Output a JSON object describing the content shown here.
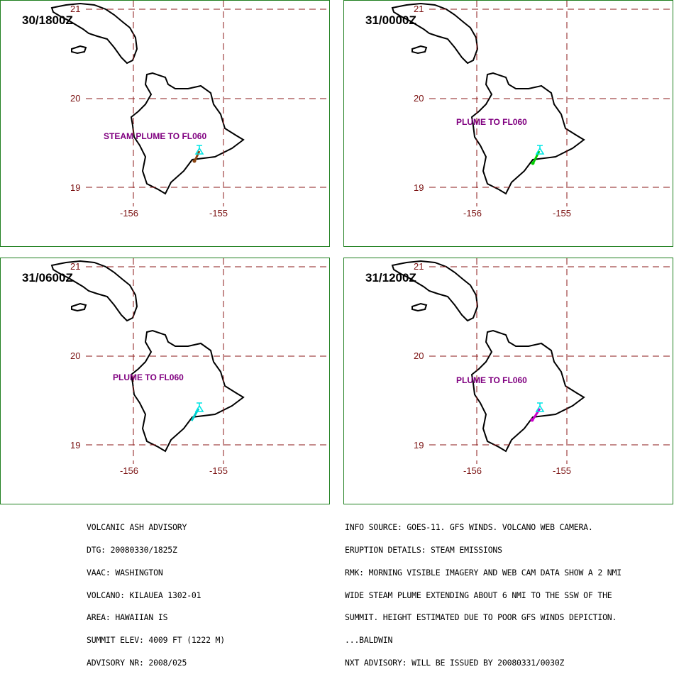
{
  "panels": [
    {
      "time": "30/1800Z",
      "plume_text": "STEAM PLUME TO FL060",
      "plume_color": "#8b4513"
    },
    {
      "time": "31/0000Z",
      "plume_text": "PLUME TO FL060",
      "plume_color": "#00cc00"
    },
    {
      "time": "31/0600Z",
      "plume_text": "PLUME TO FL060",
      "plume_color": "#00cccc"
    },
    {
      "time": "31/1200Z",
      "plume_text": "PLUME TO FL060",
      "plume_color": "#cc00cc"
    }
  ],
  "map_labels": {
    "lat_21": "21",
    "lat_20": "20",
    "lat_19": "19",
    "lon_156": "-156",
    "lon_155": "-155"
  },
  "advisory_left": [
    "VOLCANIC ASH ADVISORY",
    "DTG: 20080330/1825Z",
    "VAAC: WASHINGTON",
    "VOLCANO: KILAUEA 1302-01",
    "AREA: HAWAIIAN IS",
    "SUMMIT ELEV: 4009 FT (1222 M)",
    "ADVISORY NR: 2008/025"
  ],
  "advisory_right": [
    "INFO SOURCE: GOES-11. GFS WINDS. VOLCANO WEB CAMERA.",
    "ERUPTION DETAILS: STEAM EMISSIONS",
    "RMK: MORNING VISIBLE IMAGERY AND WEB CAM DATA SHOW A 2 NMI",
    "WIDE STEAM PLUME EXTENDING ABOUT 6 NMI TO THE SSW OF THE",
    "SUMMIT. HEIGHT ESTIMATED DUE TO POOR GFS WINDS DEPICTION.",
    "...BALDWIN",
    "NXT ADVISORY: WILL BE ISSUED BY 20080331/0030Z"
  ],
  "colors": {
    "grid": "#8b1a1a",
    "frame": "#1f7f1f",
    "coast": "#000000",
    "summit_marker": "#00e5e5"
  }
}
